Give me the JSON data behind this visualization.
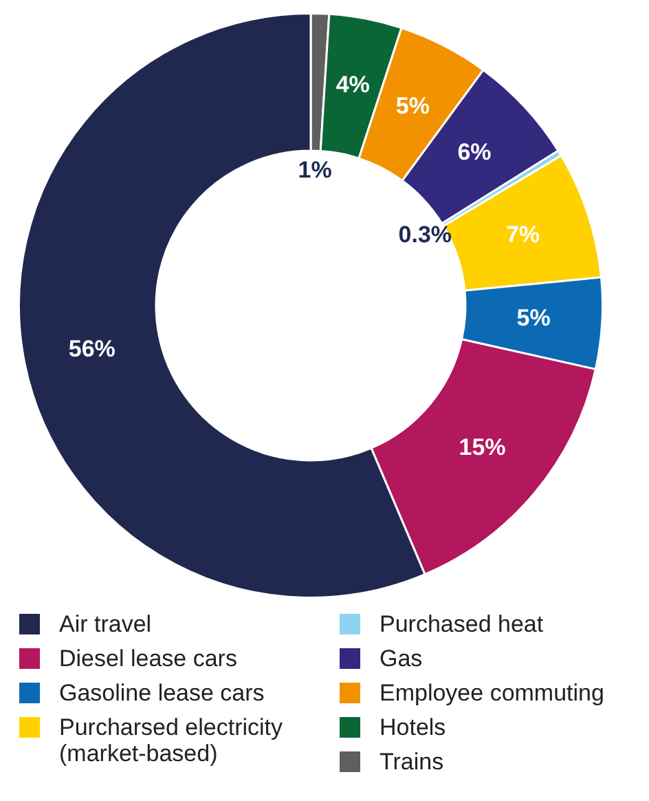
{
  "chart_data": {
    "type": "donut",
    "categories": [
      "Trains",
      "Hotels",
      "Employee commuting",
      "Gas",
      "Purchased heat",
      "Purcharsed electricity (market-based)",
      "Gasoline lease cars",
      "Diesel lease cars",
      "Air travel"
    ],
    "values": [
      1,
      4,
      5,
      6,
      0.3,
      7,
      5,
      15,
      56
    ],
    "colors": [
      "#5f5f5f",
      "#0b6636",
      "#f29200",
      "#33297f",
      "#8fd3ee",
      "#ffd100",
      "#0b6ab3",
      "#b3175e",
      "#20284f"
    ],
    "value_labels": [
      "1%",
      "4%",
      "5%",
      "6%",
      "0.3%",
      "7%",
      "5%",
      "15%",
      "56%"
    ],
    "legend": "bottom"
  }
}
